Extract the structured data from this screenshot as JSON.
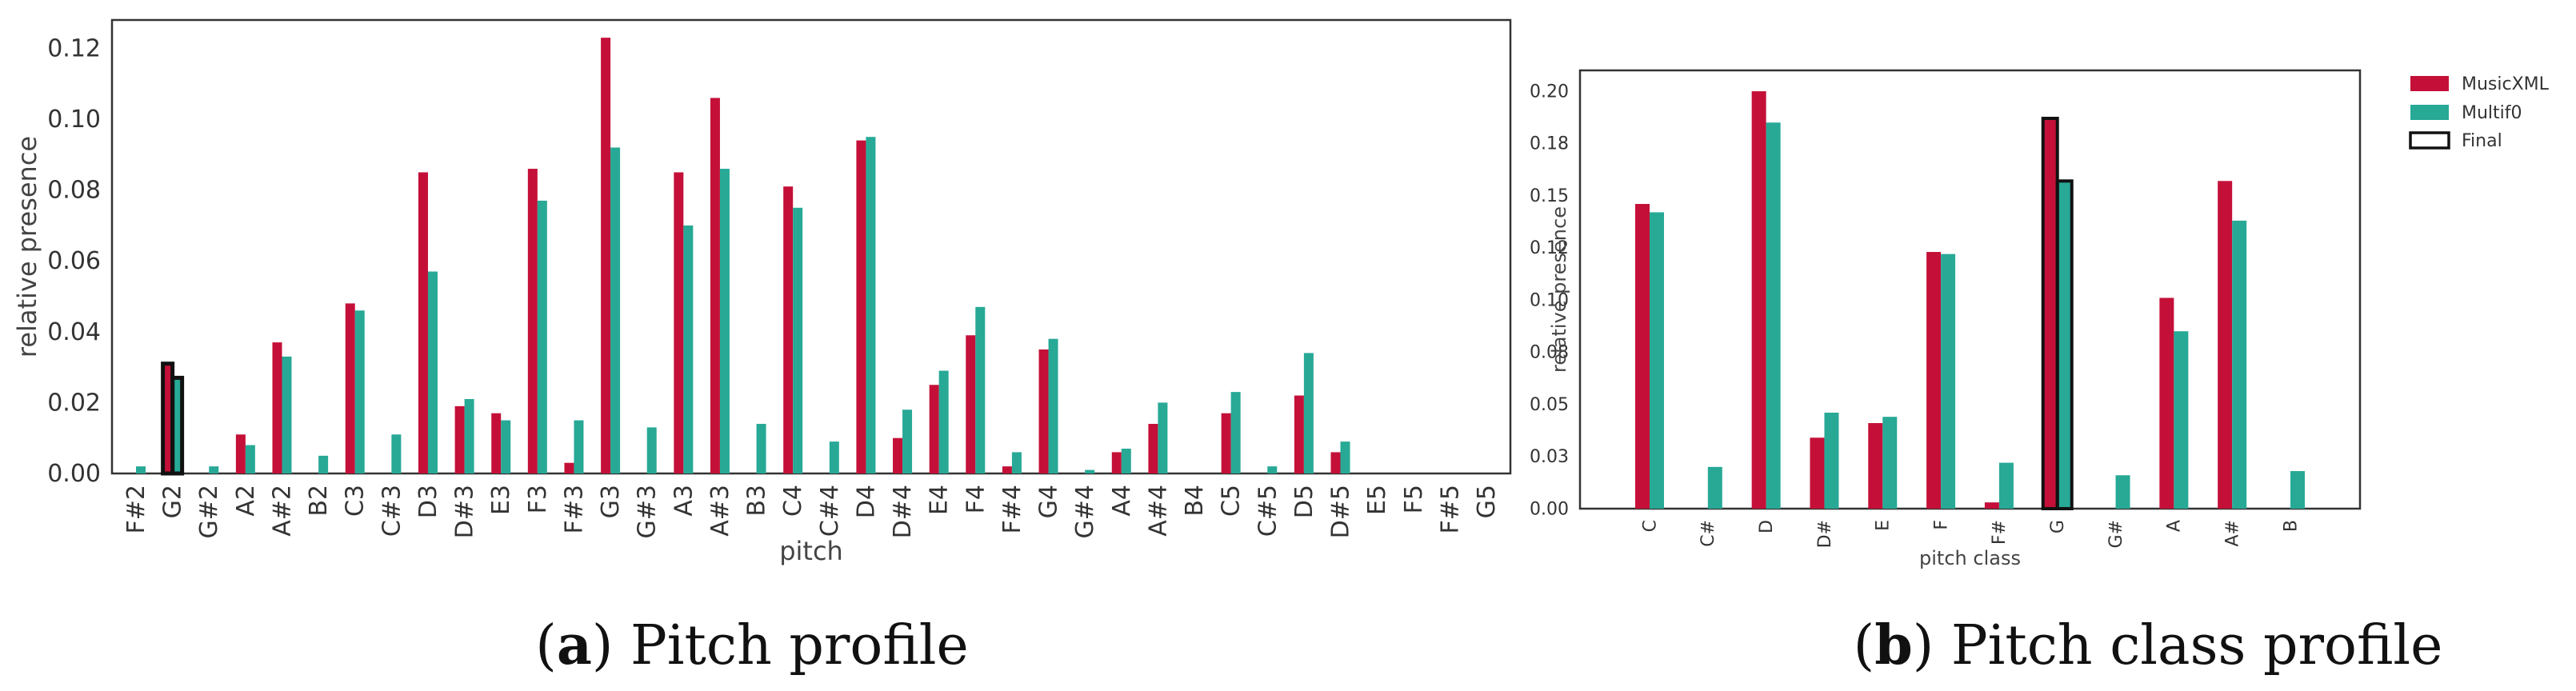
{
  "colors": {
    "musicxml": "#C41038",
    "multif0": "#27A996",
    "final": "#111111",
    "axis": "#333333"
  },
  "charts": {
    "a": {
      "caption": {
        "letter": "a",
        "text": " Pitch profile"
      },
      "chart_data": {
        "type": "bar",
        "title": "",
        "xlabel": "pitch",
        "ylabel": "relative presence",
        "ylim": [
          0,
          0.128
        ],
        "yticks": [
          "0.00",
          "0.02",
          "0.04",
          "0.06",
          "0.08",
          "0.10",
          "0.12"
        ],
        "grid": false,
        "categories": [
          "F#2",
          "G2",
          "G#2",
          "A2",
          "A#2",
          "B2",
          "C3",
          "C#3",
          "D3",
          "D#3",
          "E3",
          "F3",
          "F#3",
          "G3",
          "G#3",
          "A3",
          "A#3",
          "B3",
          "C4",
          "C#4",
          "D4",
          "D#4",
          "E4",
          "F4",
          "F#4",
          "G4",
          "G#4",
          "A4",
          "A#4",
          "B4",
          "C5",
          "C#5",
          "D5",
          "D#5",
          "E5",
          "F5",
          "F#5",
          "G5"
        ],
        "series": [
          {
            "name": "MusicXML",
            "values": [
              0,
              0.031,
              0,
              0.011,
              0.037,
              0,
              0.048,
              0,
              0.085,
              0.019,
              0.017,
              0.086,
              0.003,
              0.123,
              0,
              0.085,
              0.106,
              0,
              0.081,
              0,
              0.094,
              0.01,
              0.025,
              0.039,
              0.002,
              0.035,
              0,
              0.006,
              0.014,
              0,
              0.017,
              0,
              0.022,
              0.006,
              0,
              0,
              0,
              0
            ]
          },
          {
            "name": "Multif0",
            "values": [
              0.002,
              0.027,
              0.002,
              0.008,
              0.033,
              0.005,
              0.046,
              0.011,
              0.057,
              0.021,
              0.015,
              0.077,
              0.015,
              0.092,
              0.013,
              0.07,
              0.086,
              0.014,
              0.075,
              0.009,
              0.095,
              0.018,
              0.029,
              0.047,
              0.006,
              0.038,
              0.001,
              0.007,
              0.02,
              0,
              0.023,
              0.002,
              0.034,
              0.009,
              0,
              0,
              0,
              0
            ]
          }
        ],
        "final_highlight": {
          "category": "G2",
          "values": [
            0.031,
            0.027
          ]
        }
      }
    },
    "b": {
      "caption": {
        "letter": "b",
        "text": " Pitch class profile"
      },
      "chart_data": {
        "type": "bar",
        "title": "",
        "xlabel": "pitch class",
        "ylabel": "relative presence",
        "ylim": [
          0,
          0.21
        ],
        "yticks": [
          "0.00",
          "0.03",
          "0.05",
          "0.08",
          "0.10",
          "0.12",
          "0.15",
          "0.18",
          "0.20"
        ],
        "ytick_values": [
          0,
          0.025,
          0.05,
          0.075,
          0.1,
          0.125,
          0.15,
          0.175,
          0.2
        ],
        "grid": false,
        "legend": "outside-right-top",
        "categories": [
          "C",
          "C#",
          "D",
          "D#",
          "E",
          "F",
          "F#",
          "G",
          "G#",
          "A",
          "A#",
          "B"
        ],
        "series": [
          {
            "name": "MusicXML",
            "values": [
              0.146,
              0,
              0.2,
              0.034,
              0.041,
              0.123,
              0.003,
              0.187,
              0,
              0.101,
              0.157,
              0
            ]
          },
          {
            "name": "Multif0",
            "values": [
              0.142,
              0.02,
              0.185,
              0.046,
              0.044,
              0.122,
              0.022,
              0.157,
              0.016,
              0.085,
              0.138,
              0.018
            ]
          }
        ],
        "final_highlight": {
          "category": "G",
          "values": [
            0.187,
            0.157
          ]
        },
        "legend_entries": [
          "MusicXML",
          "Multif0",
          "Final"
        ]
      }
    }
  }
}
